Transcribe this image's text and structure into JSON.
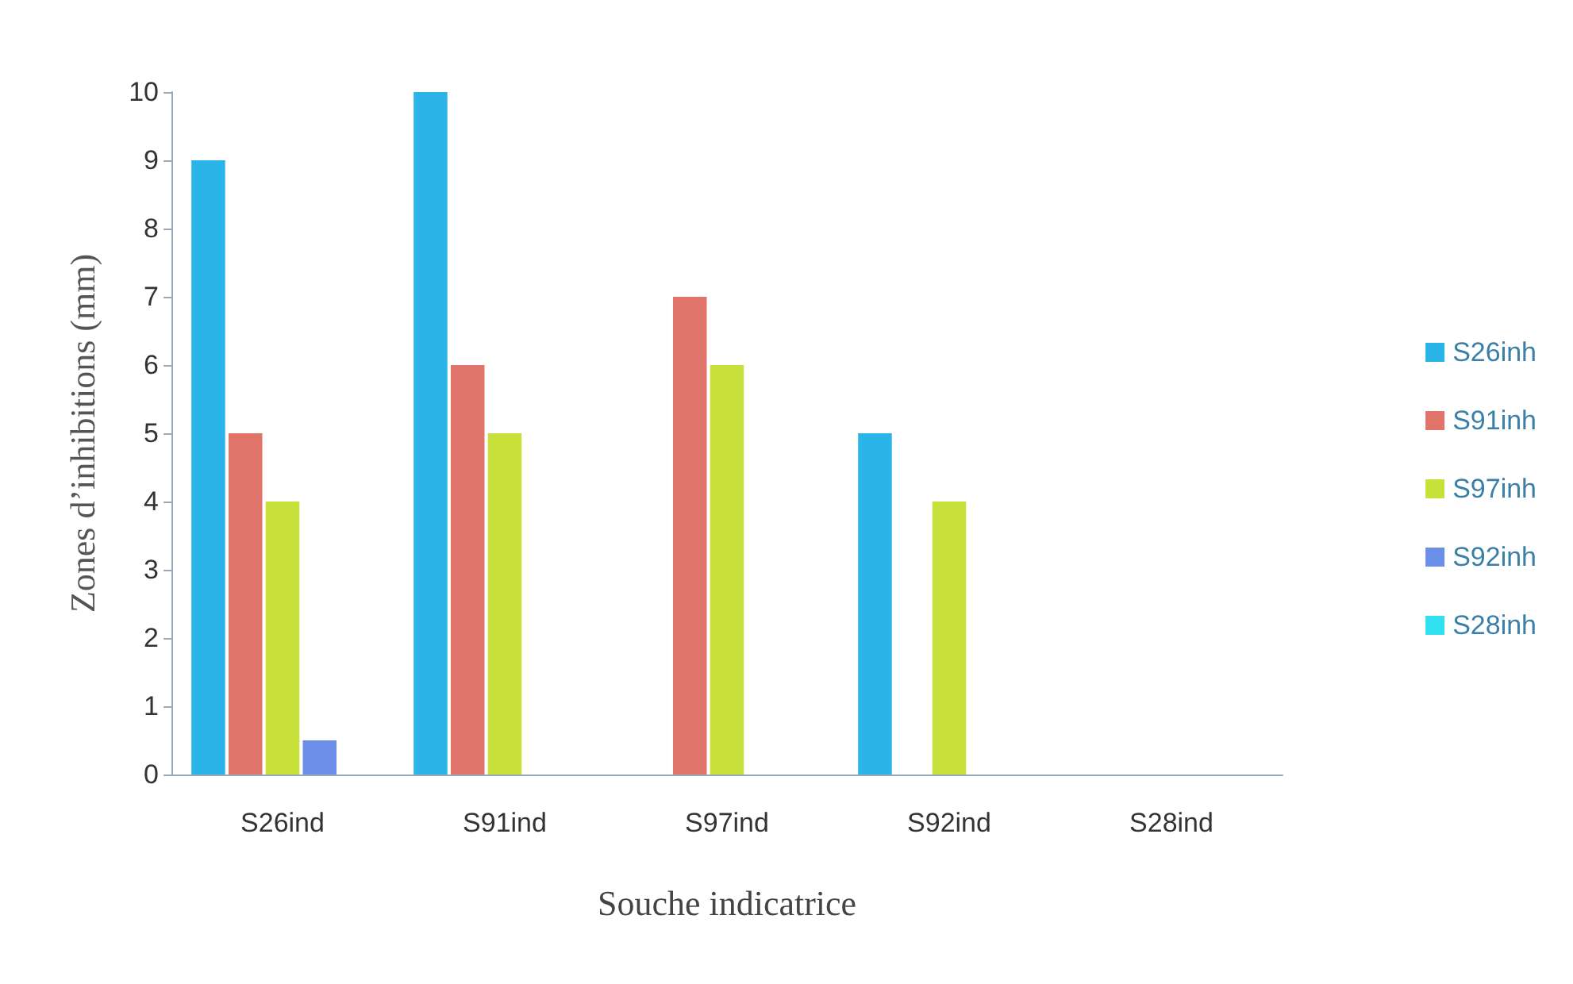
{
  "chart_data": {
    "type": "bar",
    "xlabel": "Souche indicatrice",
    "ylabel": "Zones d’inhibitions (mm)",
    "categories": [
      "S26ind",
      "S91ind",
      "S97ind",
      "S92ind",
      "S28ind"
    ],
    "series": [
      {
        "name": "S26inh",
        "color": "#2ab4e8",
        "values": [
          9,
          10,
          0,
          5,
          0
        ]
      },
      {
        "name": "S91inh",
        "color": "#e0746a",
        "values": [
          5,
          6,
          7,
          0,
          0
        ]
      },
      {
        "name": "S97inh",
        "color": "#c8e03a",
        "values": [
          4,
          5,
          6,
          4,
          0
        ]
      },
      {
        "name": "S92inh",
        "color": "#6b8ee8",
        "values": [
          0.5,
          0,
          0,
          0,
          0
        ]
      },
      {
        "name": "S28inh",
        "color": "#30e0f0",
        "values": [
          0,
          0,
          0,
          0,
          0
        ]
      }
    ],
    "ylim": [
      0,
      10
    ],
    "yticks": [
      0,
      1,
      2,
      3,
      4,
      5,
      6,
      7,
      8,
      9,
      10
    ],
    "grid": false,
    "legend": "right"
  }
}
